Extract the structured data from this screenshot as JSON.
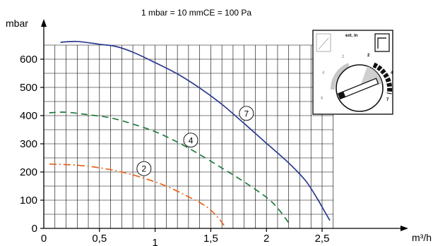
{
  "chart_data": {
    "type": "line",
    "conversion_note": "1 mbar = 10 mmCE = 100 Pa",
    "ylabel": "mbar",
    "xlabel": "m³/h",
    "xlim": [
      0,
      2.6
    ],
    "ylim": [
      0,
      700
    ],
    "grid": true,
    "x_ticks": [
      {
        "value": 0,
        "label": "0"
      },
      {
        "value": 0.5,
        "label": "0,5"
      },
      {
        "value": 1,
        "label": "1"
      },
      {
        "value": 1.5,
        "label": "1,5"
      },
      {
        "value": 2,
        "label": "2"
      },
      {
        "value": 2.5,
        "label": "2,5"
      }
    ],
    "y_ticks": [
      {
        "value": 0,
        "label": "0"
      },
      {
        "value": 100,
        "label": "100"
      },
      {
        "value": 200,
        "label": "200"
      },
      {
        "value": 300,
        "label": "300"
      },
      {
        "value": 400,
        "label": "400"
      },
      {
        "value": 500,
        "label": "500"
      },
      {
        "value": 600,
        "label": "600"
      }
    ],
    "series": [
      {
        "name": "7",
        "color": "#2b3a8f",
        "style": "solid",
        "label_at": {
          "x": 1.82,
          "y": 408
        },
        "points": [
          [
            0.15,
            660
          ],
          [
            0.3,
            663
          ],
          [
            0.5,
            653
          ],
          [
            0.65,
            645
          ],
          [
            0.8,
            625
          ],
          [
            1.0,
            588
          ],
          [
            1.2,
            548
          ],
          [
            1.4,
            498
          ],
          [
            1.6,
            440
          ],
          [
            1.8,
            372
          ],
          [
            2.0,
            302
          ],
          [
            2.2,
            232
          ],
          [
            2.35,
            170
          ],
          [
            2.45,
            110
          ],
          [
            2.53,
            55
          ],
          [
            2.57,
            28
          ]
        ]
      },
      {
        "name": "4",
        "color": "#1e7a3a",
        "style": "dashed",
        "label_at": {
          "x": 1.32,
          "y": 313
        },
        "points": [
          [
            0.05,
            410
          ],
          [
            0.2,
            412
          ],
          [
            0.4,
            403
          ],
          [
            0.6,
            392
          ],
          [
            0.8,
            370
          ],
          [
            1.0,
            343
          ],
          [
            1.2,
            306
          ],
          [
            1.4,
            262
          ],
          [
            1.6,
            214
          ],
          [
            1.8,
            165
          ],
          [
            2.0,
            110
          ],
          [
            2.1,
            72
          ],
          [
            2.2,
            20
          ]
        ]
      },
      {
        "name": "2",
        "color": "#e8641b",
        "style": "dashdot",
        "label_at": {
          "x": 0.9,
          "y": 212
        },
        "points": [
          [
            0.05,
            228
          ],
          [
            0.15,
            227
          ],
          [
            0.3,
            224
          ],
          [
            0.5,
            215
          ],
          [
            0.7,
            200
          ],
          [
            0.9,
            178
          ],
          [
            1.1,
            150
          ],
          [
            1.3,
            112
          ],
          [
            1.45,
            80
          ],
          [
            1.55,
            45
          ],
          [
            1.63,
            5
          ]
        ]
      }
    ],
    "inset_dial": {
      "top_label": "ext. in",
      "marks_gray": [
        "2",
        "4",
        "6"
      ],
      "marks_black": [
        "2",
        "4",
        "7"
      ]
    }
  }
}
